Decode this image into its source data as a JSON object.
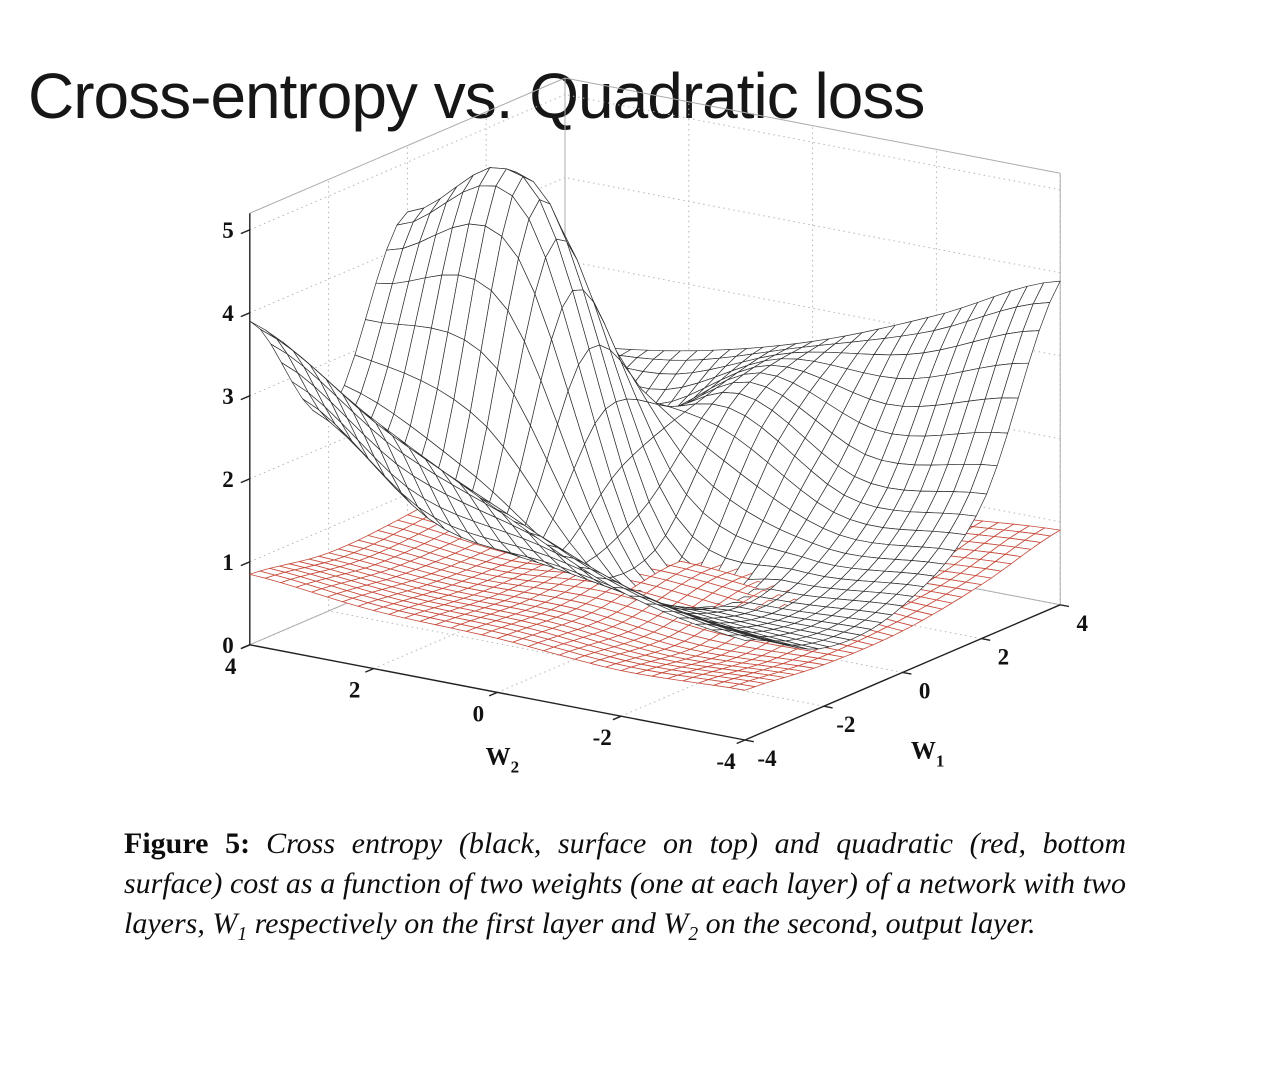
{
  "slide": {
    "title": "Cross-entropy vs. Quadratic loss"
  },
  "caption": {
    "label": "Figure 5:",
    "body_1": "Cross entropy (black, surface on top) and quadratic (red, bottom surface) cost as a function of two weights (one at each layer) of a network with two layers, ",
    "w1_base": "W",
    "w1_sub": "1",
    "body_2": " respectively on the first layer and ",
    "w2_base": "W",
    "w2_sub": "2",
    "body_3": " on the second, output layer."
  },
  "chart_data": {
    "type": "surface",
    "description": "Two overlaid 3D wireframe mesh surfaces (MATLAB style): cross-entropy cost (black, top surface) and quadratic cost (red, bottom surface) as a function of weights W1 and W2",
    "xlabel": "W",
    "xlabel_sub": "1",
    "ylabel": "W",
    "ylabel_sub": "2",
    "xlim": [
      -4,
      4
    ],
    "ylim": [
      -4,
      4
    ],
    "zlim": [
      0,
      5
    ],
    "x_ticks": [
      -4,
      -2,
      0,
      2,
      4
    ],
    "y_ticks": [
      -4,
      -2,
      0,
      2,
      4
    ],
    "z_ticks": [
      0,
      1,
      2,
      3,
      4,
      5
    ],
    "grid": true,
    "legend_position": "none",
    "view": {
      "azimuth": -37.5,
      "elevation": 30
    },
    "series": [
      {
        "name": "Cross entropy",
        "position": "top surface",
        "color": "#2e2e2e",
        "w1": [
          -4,
          -2,
          0,
          2,
          4
        ],
        "w2": [
          -4,
          -2,
          0,
          2,
          4
        ],
        "z_rows_are": "w2",
        "z": [
          [
            1.2,
            0.7,
            0.8,
            1.6,
            3.9
          ],
          [
            1.5,
            0.8,
            0.7,
            1.5,
            3.2
          ],
          [
            2.2,
            1.0,
            0.9,
            2.3,
            2.6
          ],
          [
            3.0,
            1.4,
            5.0,
            1.8,
            2.2
          ],
          [
            3.9,
            2.4,
            4.4,
            2.6,
            2.0
          ]
        ]
      },
      {
        "name": "Quadratic",
        "position": "bottom surface",
        "color": "#c64a3a",
        "w1": [
          -4,
          -2,
          0,
          2,
          4
        ],
        "w2": [
          -4,
          -2,
          0,
          2,
          4
        ],
        "z_rows_are": "w2",
        "z": [
          [
            0.6,
            0.5,
            0.5,
            0.65,
            0.9
          ],
          [
            0.55,
            0.45,
            0.65,
            0.6,
            0.8
          ],
          [
            0.65,
            0.6,
            0.75,
            0.7,
            0.85
          ],
          [
            0.7,
            0.6,
            0.6,
            0.75,
            0.95
          ],
          [
            0.85,
            0.7,
            0.75,
            0.9,
            1.05
          ]
        ]
      }
    ]
  }
}
